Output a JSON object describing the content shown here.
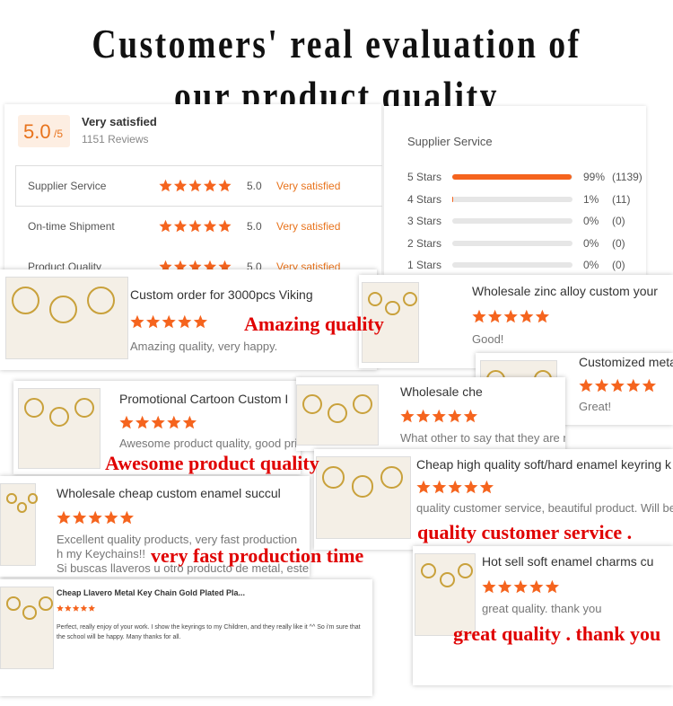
{
  "header": {
    "title_lines": [
      "Customers' real evaluation of",
      "our product quality"
    ]
  },
  "rating": {
    "score": "5.0",
    "out_of": "/5",
    "label": "Very satisfied",
    "reviews": "1151 Reviews",
    "rows": [
      {
        "label": "Supplier Service",
        "score": "5.0",
        "verdict": "Very satisfied"
      },
      {
        "label": "On-time Shipment",
        "score": "5.0",
        "verdict": "Very satisfied"
      },
      {
        "label": "Product Quality",
        "score": "5.0",
        "verdict": "Very satisfied"
      }
    ]
  },
  "distribution": {
    "title": "Supplier Service",
    "rows": [
      {
        "label": "5 Stars",
        "percent": 99,
        "percent_label": "99%",
        "count": 1139,
        "count_label": "(1139)"
      },
      {
        "label": "4 Stars",
        "percent": 1,
        "percent_label": "1%",
        "count": 11,
        "count_label": "(11)"
      },
      {
        "label": "3 Stars",
        "percent": 0,
        "percent_label": "0%",
        "count": 0,
        "count_label": "(0)"
      },
      {
        "label": "2 Stars",
        "percent": 0,
        "percent_label": "0%",
        "count": 0,
        "count_label": "(0)"
      },
      {
        "label": "1 Stars",
        "percent": 0,
        "percent_label": "0%",
        "count": 0,
        "count_label": "(0)"
      }
    ]
  },
  "cards": [
    {
      "title": "Custom order for 3000pcs Viking",
      "comment": [
        "Amazing quality, very happy."
      ]
    },
    {
      "title": "Wholesale zinc alloy custom your",
      "comment": [
        "Good!"
      ]
    },
    {
      "title": "Customized meta",
      "comment": [
        "Great!"
      ]
    },
    {
      "title": "Promotional Cartoon Custom I",
      "comment": [
        "Awesome product quality, good pri"
      ]
    },
    {
      "title": "Wholesale che",
      "comment": [
        "What other to say that they are my only supplier?"
      ]
    },
    {
      "title": "Cheap high quality soft/hard enamel keyring k",
      "comment": [
        "quality customer service,  beautiful product.  Will be u"
      ]
    },
    {
      "title": "Wholesale cheap custom enamel succul",
      "comment": [
        "Excellent quality products, very fast production",
        "h my Keychains!!",
        "Si buscas llaveros u otro producto de metal, este"
      ]
    },
    {
      "title": "Cheap Llavero Metal Key Chain Gold Plated Pla...",
      "comment": [
        "Perfect, really enjoy of your work. I show the keyrings to my Children, and they really like it ^^ So i'm sure that the school will be happy. Many thanks for all."
      ]
    },
    {
      "title": "Hot sell soft enamel charms cu",
      "comment": [
        "great quality. thank you"
      ]
    }
  ],
  "captions": [
    "Amazing quality",
    "Awesome product quality",
    "quality customer service .",
    "very fast production time",
    "great quality . thank you"
  ]
}
